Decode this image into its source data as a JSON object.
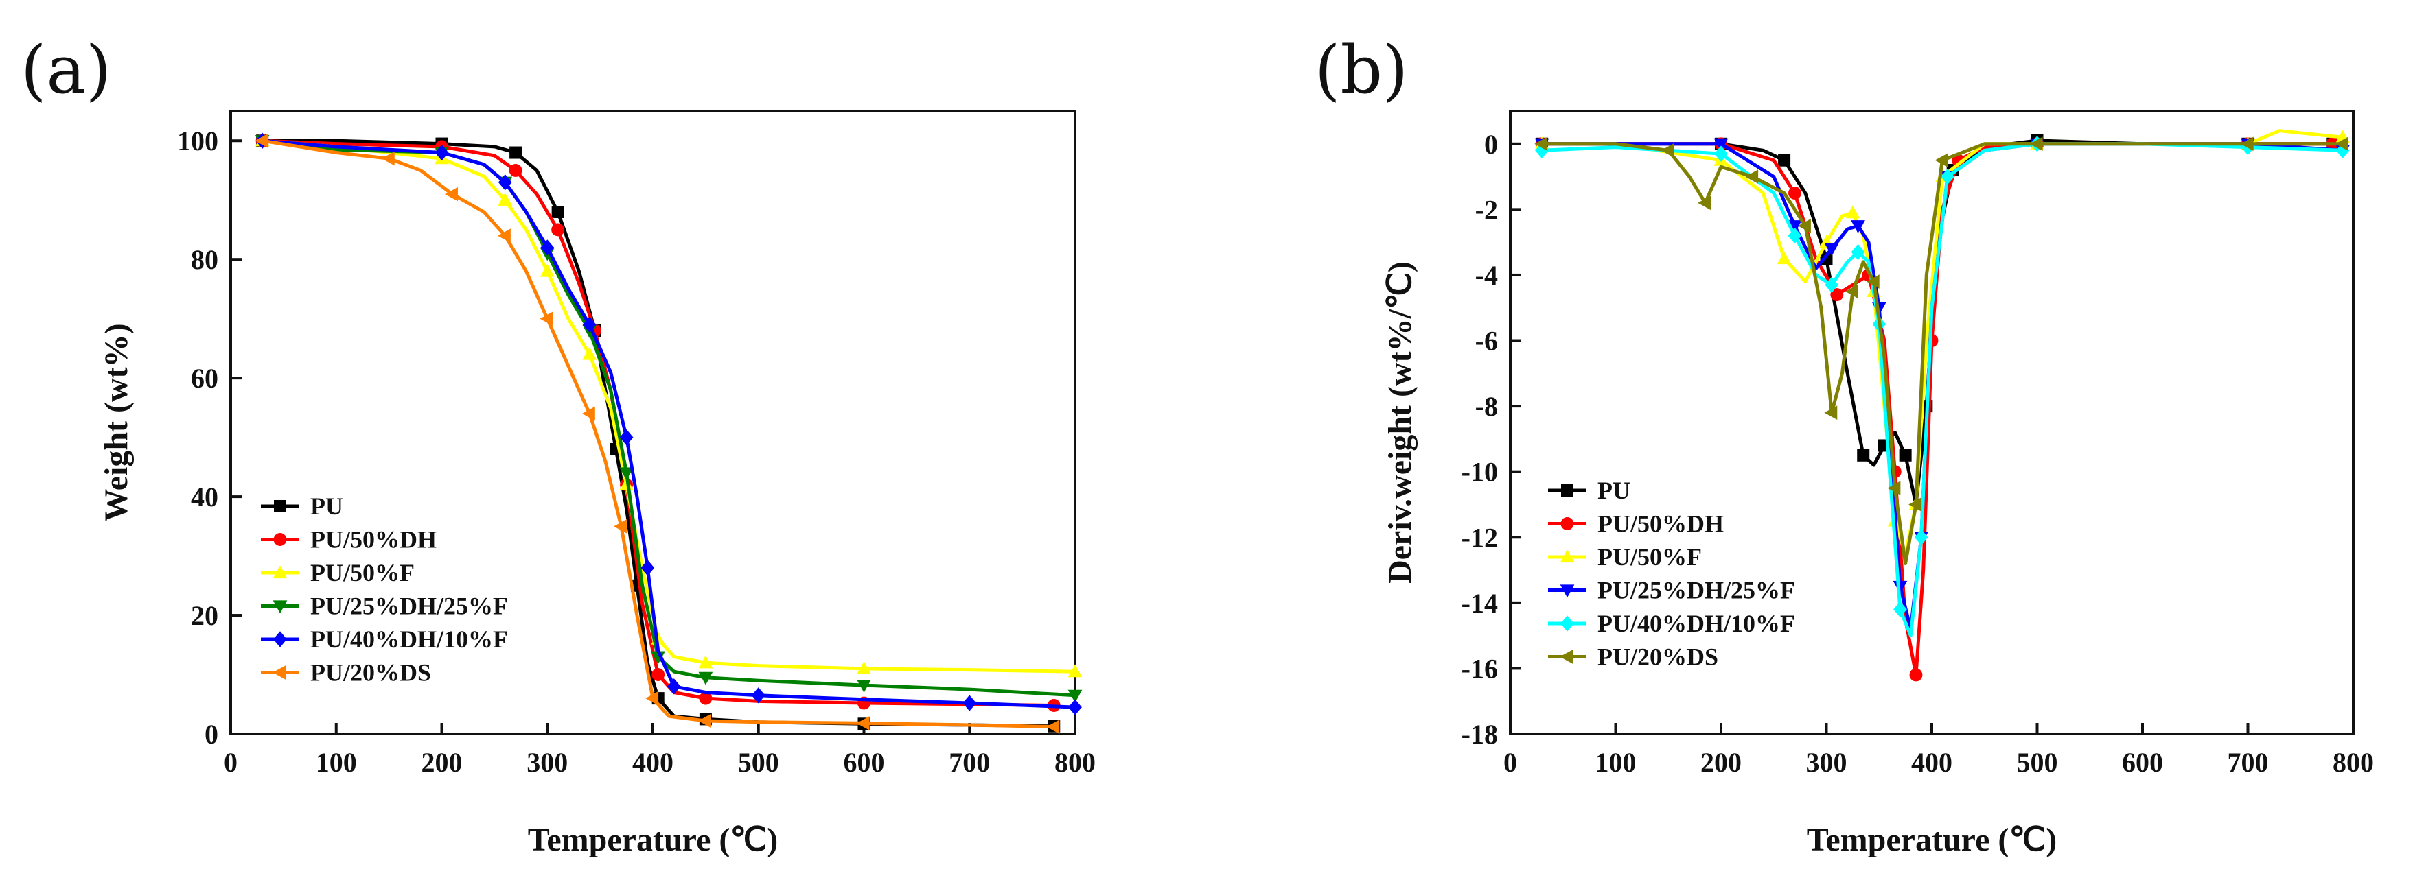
{
  "chart_data": [
    {
      "panel": "(a)",
      "type": "line",
      "title": "",
      "xlabel": "Temperature (℃)",
      "ylabel": "Weight (wt%)",
      "xlim": [
        0,
        800
      ],
      "ylim": [
        0,
        105
      ],
      "xticks": [
        0,
        100,
        200,
        300,
        400,
        500,
        600,
        700,
        800
      ],
      "yticks": [
        0,
        20,
        40,
        60,
        80,
        100
      ],
      "legend_position": "bottom-left",
      "series": [
        {
          "name": "PU",
          "color": "#000000",
          "marker": "square",
          "x": [
            30,
            100,
            200,
            250,
            270,
            290,
            310,
            330,
            345,
            355,
            365,
            375,
            385,
            395,
            405,
            420,
            450,
            500,
            600,
            700,
            780
          ],
          "y": [
            100,
            100,
            99.5,
            99,
            98,
            95,
            88,
            78,
            68,
            58,
            48,
            38,
            25,
            12,
            6,
            3,
            2.5,
            2,
            1.7,
            1.5,
            1.3
          ]
        },
        {
          "name": "PU/50%DH",
          "color": "#ff0000",
          "marker": "circle",
          "x": [
            30,
            100,
            200,
            250,
            270,
            290,
            310,
            330,
            345,
            360,
            375,
            390,
            405,
            420,
            450,
            500,
            600,
            700,
            780
          ],
          "y": [
            100,
            99.5,
            99,
            97.5,
            95,
            91,
            85,
            76,
            68,
            58,
            42,
            22,
            10,
            7,
            6,
            5.5,
            5.2,
            5,
            4.8
          ]
        },
        {
          "name": "PU/50%F",
          "color": "#ffff00",
          "marker": "triangle-up",
          "x": [
            30,
            100,
            200,
            240,
            260,
            280,
            300,
            320,
            340,
            360,
            375,
            390,
            405,
            420,
            450,
            500,
            600,
            700,
            800
          ],
          "y": [
            100,
            99,
            97,
            94,
            90,
            85,
            78,
            70,
            64,
            55,
            42,
            28,
            16,
            13,
            12,
            11.5,
            11,
            10.8,
            10.5
          ]
        },
        {
          "name": "PU/25%DH/25%F",
          "color": "#008000",
          "marker": "triangle-down",
          "x": [
            30,
            100,
            200,
            240,
            260,
            280,
            300,
            320,
            340,
            360,
            375,
            390,
            405,
            420,
            450,
            500,
            600,
            700,
            800
          ],
          "y": [
            100,
            98.5,
            98,
            96,
            93,
            88,
            81,
            74,
            68,
            58,
            44,
            25,
            13,
            10.5,
            9.5,
            9,
            8.2,
            7.5,
            6.5
          ]
        },
        {
          "name": "PU/40%DH/10%F",
          "color": "#0000ff",
          "marker": "diamond",
          "x": [
            30,
            100,
            200,
            240,
            260,
            280,
            300,
            320,
            340,
            360,
            375,
            385,
            395,
            405,
            420,
            450,
            500,
            600,
            700,
            800
          ],
          "y": [
            100,
            99,
            98,
            96,
            93,
            88,
            82,
            75,
            69,
            61,
            50,
            40,
            28,
            14,
            8,
            7,
            6.5,
            5.8,
            5.2,
            4.5
          ]
        },
        {
          "name": "PU/20%DS",
          "color": "#ff8000",
          "marker": "triangle-left",
          "x": [
            30,
            100,
            150,
            180,
            210,
            240,
            260,
            280,
            300,
            320,
            340,
            355,
            370,
            385,
            400,
            415,
            450,
            500,
            600,
            700,
            780
          ],
          "y": [
            100,
            98,
            97,
            95,
            91,
            88,
            84,
            78,
            70,
            62,
            54,
            46,
            35,
            20,
            6,
            3,
            2.2,
            2,
            1.8,
            1.5,
            1.2
          ]
        }
      ]
    },
    {
      "panel": "(b)",
      "type": "line",
      "title": "",
      "xlabel": "Temperature (℃)",
      "ylabel": "Deriv.weight (wt%/℃)",
      "xlim": [
        0,
        800
      ],
      "ylim": [
        -18,
        1
      ],
      "xticks": [
        0,
        100,
        200,
        300,
        400,
        500,
        600,
        700,
        800
      ],
      "yticks": [
        0,
        -2,
        -4,
        -6,
        -8,
        -10,
        -12,
        -14,
        -16,
        -18
      ],
      "legend_position": "bottom-left",
      "series": [
        {
          "name": "PU",
          "color": "#000000",
          "marker": "square",
          "x": [
            30,
            100,
            200,
            240,
            260,
            280,
            300,
            320,
            335,
            345,
            355,
            365,
            375,
            385,
            395,
            405,
            420,
            450,
            500,
            600,
            700,
            780
          ],
          "y": [
            0,
            0,
            0,
            -0.2,
            -0.5,
            -1.5,
            -3.5,
            -7,
            -9.5,
            -9.8,
            -9.2,
            -8.8,
            -9.5,
            -11,
            -8,
            -3,
            -0.8,
            -0.1,
            0.1,
            0,
            0,
            0
          ]
        },
        {
          "name": "PU/50%DH",
          "color": "#ff0000",
          "marker": "circle",
          "x": [
            30,
            100,
            200,
            250,
            270,
            290,
            310,
            325,
            340,
            355,
            365,
            375,
            385,
            392,
            400,
            410,
            425,
            450,
            500,
            600,
            700,
            780
          ],
          "y": [
            0,
            0,
            0,
            -0.5,
            -1.5,
            -3.5,
            -4.6,
            -4.3,
            -4.0,
            -6,
            -10,
            -14.5,
            -16.2,
            -13,
            -6,
            -2,
            -0.5,
            -0.1,
            0,
            0,
            0,
            0
          ]
        },
        {
          "name": "PU/50%F",
          "color": "#ffff00",
          "marker": "triangle-up",
          "x": [
            30,
            100,
            200,
            240,
            260,
            280,
            300,
            315,
            325,
            335,
            345,
            355,
            365,
            375,
            385,
            395,
            410,
            450,
            500,
            600,
            700,
            730,
            790
          ],
          "y": [
            0,
            0,
            -0.5,
            -1.5,
            -3.5,
            -4.2,
            -3.0,
            -2.2,
            -2.1,
            -2.8,
            -4.5,
            -8,
            -11.5,
            -12.5,
            -11,
            -6,
            -1,
            0,
            0,
            0,
            0,
            0.4,
            0.2
          ]
        },
        {
          "name": "PU/25%DH/25%F",
          "color": "#0000ff",
          "marker": "triangle-down",
          "x": [
            30,
            100,
            200,
            250,
            270,
            290,
            305,
            320,
            330,
            340,
            350,
            360,
            370,
            380,
            390,
            400,
            415,
            450,
            500,
            600,
            700,
            790
          ],
          "y": [
            0,
            0,
            0,
            -1,
            -2.5,
            -3.8,
            -3.2,
            -2.6,
            -2.5,
            -3.0,
            -5,
            -9,
            -13.5,
            -14.8,
            -12,
            -5,
            -1,
            -0.2,
            0,
            0,
            0,
            -0.2
          ]
        },
        {
          "name": "PU/40%DH/10%F",
          "color": "#00ffff",
          "marker": "diamond",
          "x": [
            30,
            100,
            200,
            250,
            270,
            290,
            305,
            320,
            330,
            340,
            350,
            360,
            370,
            380,
            390,
            400,
            415,
            450,
            500,
            600,
            700,
            790
          ],
          "y": [
            -0.2,
            -0.1,
            -0.3,
            -1.5,
            -2.8,
            -4.0,
            -4.3,
            -3.6,
            -3.3,
            -3.6,
            -5.5,
            -10,
            -14.2,
            -15,
            -12,
            -5,
            -1,
            -0.2,
            0,
            0,
            -0.1,
            -0.2
          ]
        },
        {
          "name": "PU/20%DS",
          "color": "#808000",
          "marker": "triangle-left",
          "x": [
            30,
            100,
            150,
            170,
            185,
            200,
            230,
            260,
            280,
            295,
            305,
            315,
            325,
            335,
            345,
            355,
            365,
            375,
            385,
            395,
            410,
            450,
            500,
            600,
            700,
            790
          ],
          "y": [
            0,
            0,
            -0.2,
            -1,
            -1.8,
            -0.7,
            -1,
            -1.5,
            -2.5,
            -5,
            -8.2,
            -7.0,
            -4.5,
            -3.6,
            -4.2,
            -6.5,
            -10.5,
            -12.8,
            -11,
            -4,
            -0.5,
            0,
            0,
            0,
            0,
            0
          ]
        }
      ]
    }
  ]
}
